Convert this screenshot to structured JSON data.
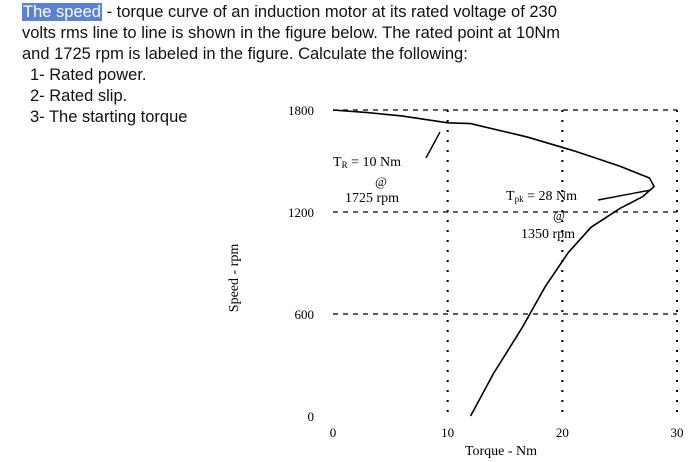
{
  "question": {
    "line1_highlight": "The speed",
    "line1_rest": " - torque curve of an induction motor at its rated voltage of 230",
    "line2": "volts rms line to line is shown in the figure below. The rated point at 10Nm",
    "line3": "and 1725 rpm is  labeled in the figure. Calculate the following:",
    "items": [
      "1- Rated power.",
      "2- Rated slip.",
      "3- The starting torque"
    ]
  },
  "chart_data": {
    "type": "line",
    "xlabel": "Torque - Nm",
    "ylabel": "Speed - rpm",
    "x_ticks": [
      "0",
      "10",
      "20",
      "30"
    ],
    "y_ticks": [
      "0",
      "600",
      "1200",
      "1800"
    ],
    "xlim": [
      0,
      30
    ],
    "ylim": [
      0,
      1800
    ],
    "series": [
      {
        "points": [
          [
            12,
            0
          ],
          [
            14,
            250
          ],
          [
            16.5,
            520
          ],
          [
            18.5,
            760
          ],
          [
            20.5,
            960
          ],
          [
            22.5,
            1110
          ],
          [
            25,
            1220
          ],
          [
            27,
            1290
          ],
          [
            28,
            1350
          ],
          [
            27.6,
            1400
          ],
          [
            25,
            1470
          ],
          [
            21,
            1560
          ],
          [
            17,
            1640
          ],
          [
            12,
            1720
          ],
          [
            10,
            1725
          ],
          [
            6,
            1765
          ],
          [
            3,
            1785
          ],
          [
            0,
            1800
          ]
        ]
      }
    ],
    "annotations": {
      "rated": {
        "label": "T_R = 10 Nm",
        "at": "@",
        "speed": "1725 rpm",
        "x": 10,
        "y": 1725
      },
      "peak": {
        "label": "T_pk = 28 Nm",
        "at": "@",
        "speed": "1350 rpm",
        "x": 28,
        "y": 1350
      }
    },
    "grid": "dashed",
    "color": "#000000"
  }
}
